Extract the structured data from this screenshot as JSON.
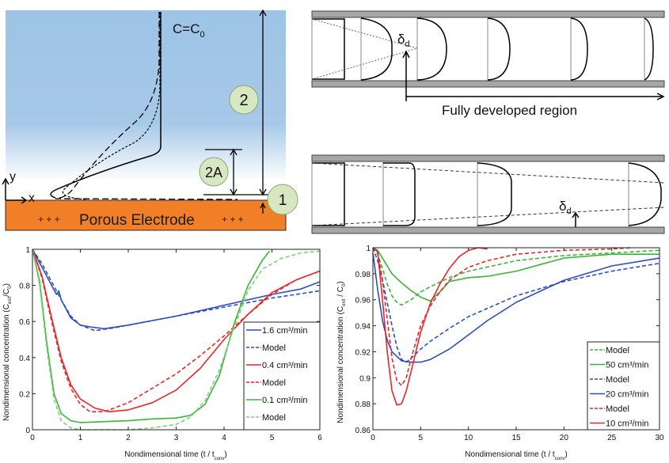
{
  "figure": {
    "panel_a": {
      "label_top": "C=C",
      "label_top_sub": "0",
      "electrode_label": "Porous Electrode",
      "plus_left": "+ + +",
      "plus_right": "+ + +",
      "axis_y": "y",
      "axis_x": "x",
      "region_labels": [
        "2",
        "2A",
        "1"
      ],
      "colors": {
        "fluid_top": "#9dc3e6",
        "electrode": "#f07f28",
        "circle": "#d6e7c1"
      }
    },
    "panel_b": {
      "delta_label": "δ",
      "delta_sub": "d",
      "region_label": "Fully developed region"
    },
    "panel_c": {
      "delta_label": "δ",
      "delta_sub": "d"
    }
  },
  "chart_data": [
    {
      "type": "line",
      "title": "",
      "xlabel": "Nondimensional time (t / t",
      "xlabel_sub": "conv",
      "xlabel_end": ")",
      "ylabel": "Nondimensional concentration (C",
      "ylabel_sub1": "exit",
      "ylabel_mid": "/C",
      "ylabel_sub2": "0",
      "ylabel_end": ")",
      "xlim": [
        0,
        6
      ],
      "ylim": [
        0,
        1
      ],
      "xticks": [
        "0",
        "1",
        "2",
        "3",
        "4",
        "5",
        "6"
      ],
      "yticks": [
        "0",
        "0.2",
        "0.4",
        "0.6",
        "0.8",
        "1"
      ],
      "grid": false,
      "legend_position": "bottom-right",
      "series": [
        {
          "name": "1.6 cm³/min",
          "color": "#2c4fb8",
          "dash": "solid",
          "x": [
            0,
            0.2,
            0.4,
            0.5,
            0.55,
            0.6,
            0.8,
            1.0,
            1.2,
            1.5,
            2,
            3,
            4,
            5,
            5.6,
            6
          ],
          "y": [
            1,
            0.9,
            0.8,
            0.75,
            0.77,
            0.72,
            0.62,
            0.58,
            0.57,
            0.56,
            0.58,
            0.63,
            0.69,
            0.75,
            0.78,
            0.82
          ]
        },
        {
          "name": "Model",
          "color": "#2c4fb8",
          "dash": "dashed",
          "x": [
            0,
            0.2,
            0.4,
            0.6,
            0.8,
            1.0,
            1.3,
            1.6,
            2,
            3,
            4,
            5,
            6
          ],
          "y": [
            1,
            0.92,
            0.82,
            0.72,
            0.63,
            0.58,
            0.55,
            0.56,
            0.58,
            0.63,
            0.68,
            0.73,
            0.77
          ]
        },
        {
          "name": "0.4 cm³/min",
          "color": "#e8262a",
          "dash": "solid",
          "x": [
            0,
            0.2,
            0.4,
            0.6,
            0.8,
            1.0,
            1.3,
            1.6,
            2,
            2.5,
            3,
            3.5,
            4,
            4.5,
            5,
            5.5,
            6
          ],
          "y": [
            1,
            0.85,
            0.62,
            0.4,
            0.25,
            0.17,
            0.12,
            0.1,
            0.11,
            0.15,
            0.22,
            0.34,
            0.5,
            0.64,
            0.76,
            0.83,
            0.88
          ]
        },
        {
          "name": "Model",
          "color": "#e8262a",
          "dash": "dashed",
          "x": [
            0,
            0.2,
            0.4,
            0.6,
            0.8,
            1.0,
            1.2,
            1.5,
            2,
            2.5,
            3,
            3.5,
            4,
            4.5,
            5,
            5.5,
            6
          ],
          "y": [
            1,
            0.84,
            0.6,
            0.38,
            0.23,
            0.14,
            0.1,
            0.1,
            0.15,
            0.23,
            0.31,
            0.41,
            0.52,
            0.64,
            0.75,
            0.83,
            0.88
          ]
        },
        {
          "name": "0.1 cm³/min",
          "color": "#3cb43c",
          "dash": "solid",
          "x": [
            0,
            0.15,
            0.3,
            0.45,
            0.6,
            0.8,
            1.0,
            1.5,
            2,
            2.5,
            3,
            3.3,
            3.6,
            3.9,
            4.2,
            4.5,
            4.8,
            4.95
          ],
          "y": [
            1,
            0.82,
            0.48,
            0.2,
            0.09,
            0.05,
            0.04,
            0.045,
            0.05,
            0.06,
            0.065,
            0.08,
            0.14,
            0.3,
            0.58,
            0.8,
            0.94,
            0.99
          ]
        },
        {
          "name": "Model",
          "color": "#7ed07e",
          "dash": "dashed",
          "x": [
            0,
            0.15,
            0.3,
            0.45,
            0.6,
            0.8,
            1.0,
            1.5,
            2,
            2.5,
            3,
            3.3,
            3.6,
            3.9,
            4.2,
            4.5,
            4.8,
            5.2,
            5.6,
            6
          ],
          "y": [
            1,
            0.8,
            0.45,
            0.17,
            0.05,
            0.01,
            0.0,
            0.0,
            0.0,
            0.01,
            0.03,
            0.07,
            0.16,
            0.33,
            0.56,
            0.77,
            0.89,
            0.95,
            0.98,
            0.99
          ]
        }
      ]
    },
    {
      "type": "line",
      "title": "",
      "xlabel": "Nondimensional time (t / t",
      "xlabel_sub": "conv",
      "xlabel_end": ")",
      "ylabel": "Nondimensional concentration (C",
      "ylabel_sub1": "exit",
      "ylabel_mid": " / C",
      "ylabel_sub2": "0",
      "ylabel_end": ")",
      "xlim": [
        0,
        30
      ],
      "ylim": [
        0.86,
        1
      ],
      "xticks": [
        "0",
        "5",
        "10",
        "15",
        "20",
        "25",
        "30"
      ],
      "yticks": [
        "0.86",
        "0.88",
        "0.9",
        "0.92",
        "0.94",
        "0.96",
        "0.98",
        "1"
      ],
      "grid": false,
      "legend_position": "bottom-right",
      "series": [
        {
          "name": "Model",
          "color": "#3cb43c",
          "dash": "dashed",
          "x": [
            0,
            0.5,
            1,
            1.5,
            2,
            2.5,
            3,
            4,
            5,
            6,
            8,
            10,
            15,
            20,
            25,
            30
          ],
          "y": [
            1,
            0.995,
            0.984,
            0.972,
            0.963,
            0.958,
            0.956,
            0.96,
            0.966,
            0.97,
            0.977,
            0.982,
            0.99,
            0.994,
            0.996,
            0.998
          ]
        },
        {
          "name": "50 cm³/min",
          "color": "#3cb43c",
          "dash": "solid",
          "x": [
            0,
            0.5,
            1,
            2,
            3,
            4,
            5,
            6,
            7,
            8,
            10,
            12,
            15,
            18,
            20,
            25,
            30
          ],
          "y": [
            1,
            0.998,
            0.992,
            0.98,
            0.973,
            0.967,
            0.962,
            0.959,
            0.966,
            0.974,
            0.977,
            0.978,
            0.982,
            0.988,
            0.992,
            0.995,
            0.995
          ]
        },
        {
          "name": "Model",
          "color": "#2c4fb8",
          "dash": "dashed",
          "x": [
            0,
            0.5,
            1,
            1.5,
            2,
            2.5,
            3,
            3.5,
            4,
            5,
            6,
            8,
            10,
            15,
            20,
            25,
            30
          ],
          "y": [
            1,
            0.99,
            0.975,
            0.958,
            0.94,
            0.924,
            0.914,
            0.912,
            0.915,
            0.922,
            0.928,
            0.938,
            0.947,
            0.963,
            0.974,
            0.982,
            0.988
          ]
        },
        {
          "name": "20 cm³/min",
          "color": "#2c4fb8",
          "dash": "solid",
          "x": [
            0,
            0.5,
            1,
            1.5,
            2,
            3,
            4,
            5,
            6,
            8,
            10,
            12,
            15,
            20,
            25,
            30
          ],
          "y": [
            0.996,
            0.968,
            0.944,
            0.929,
            0.92,
            0.913,
            0.912,
            0.912,
            0.914,
            0.922,
            0.933,
            0.944,
            0.958,
            0.975,
            0.986,
            0.992
          ]
        },
        {
          "name": "Model",
          "color": "#e8262a",
          "dash": "dashed",
          "x": [
            0,
            0.5,
            1,
            1.5,
            2,
            2.5,
            3,
            3.5,
            4,
            5,
            6,
            7,
            8,
            10,
            12,
            15,
            20,
            25,
            27
          ],
          "y": [
            1,
            0.997,
            0.975,
            0.945,
            0.915,
            0.898,
            0.894,
            0.9,
            0.915,
            0.94,
            0.955,
            0.966,
            0.975,
            0.985,
            0.99,
            0.995,
            0.998,
            0.999,
            1.0
          ]
        },
        {
          "name": "10 cm³/min",
          "color": "#e8262a",
          "dash": "solid",
          "x": [
            0,
            0.5,
            1,
            1.5,
            2,
            2.5,
            3,
            3.5,
            4,
            5,
            6,
            7,
            8,
            9,
            10,
            11,
            12
          ],
          "y": [
            1,
            0.997,
            0.96,
            0.92,
            0.89,
            0.879,
            0.88,
            0.89,
            0.905,
            0.935,
            0.957,
            0.972,
            0.984,
            0.993,
            0.998,
            1.0,
            0.999
          ]
        }
      ]
    }
  ]
}
